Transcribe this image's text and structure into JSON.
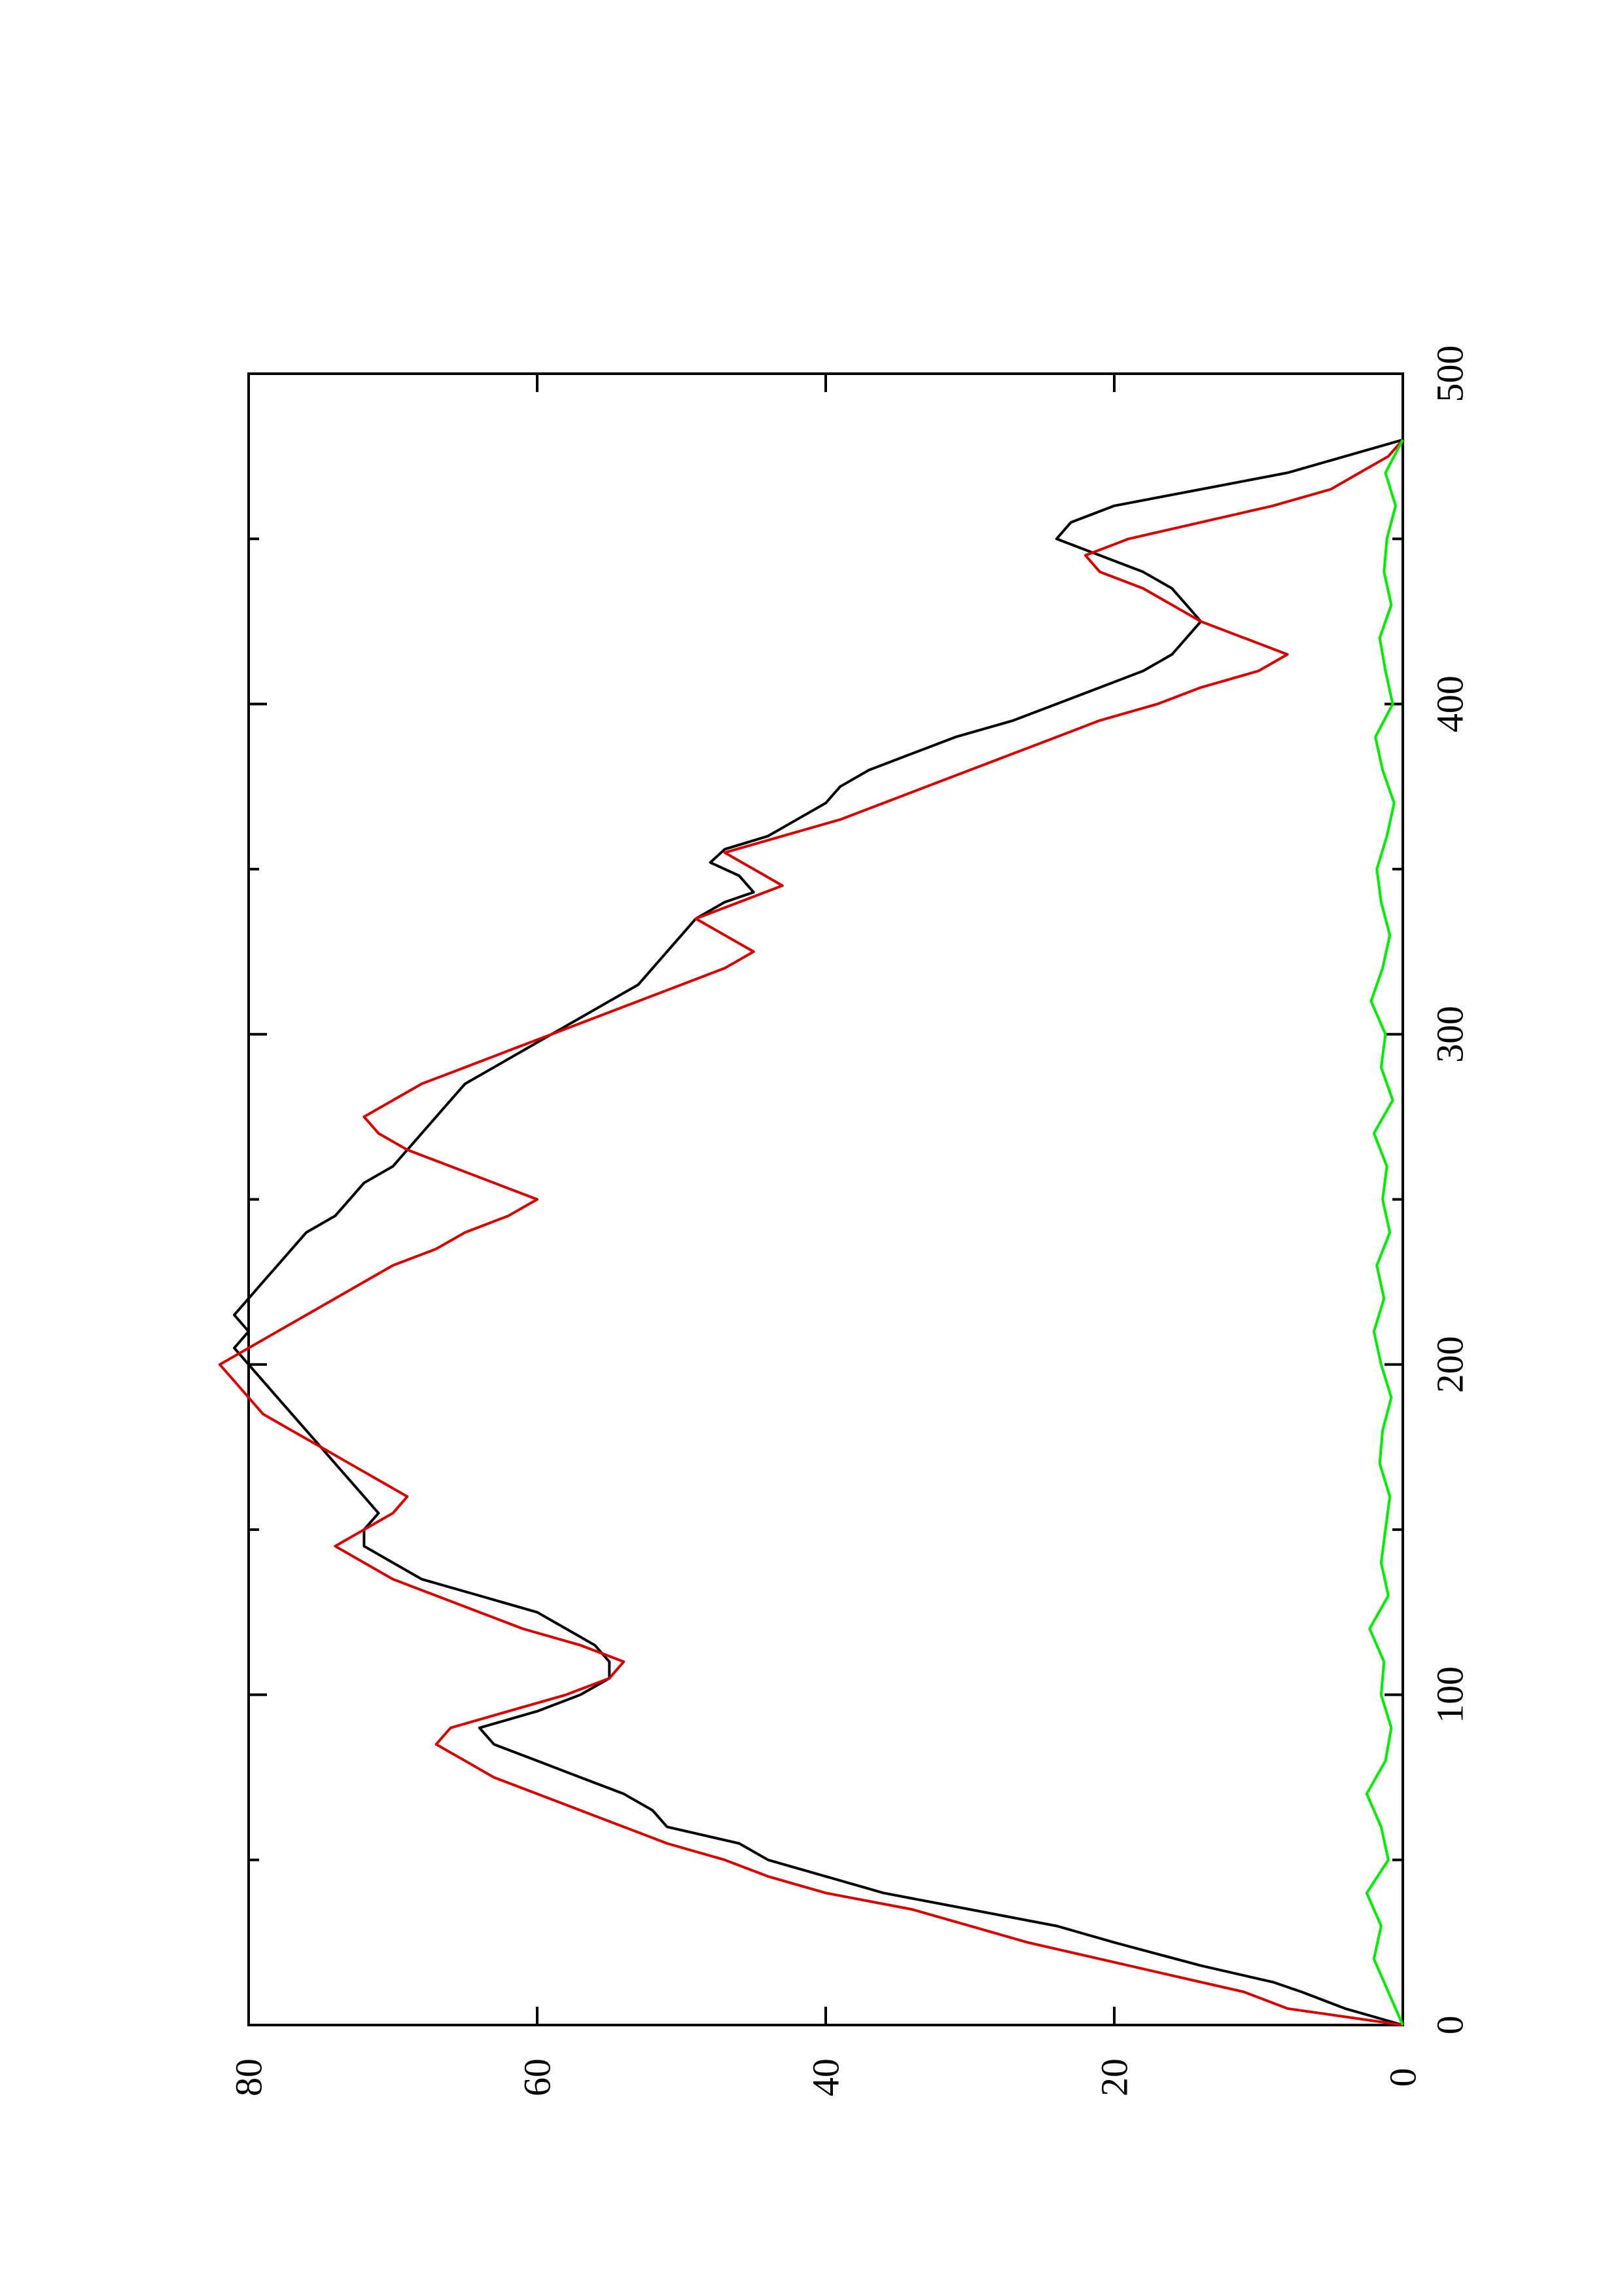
{
  "chart_data": {
    "type": "line",
    "title": "",
    "xlabel": "",
    "ylabel": "",
    "orientation": "rotated-90-ccw",
    "grid": false,
    "legend": "none",
    "xlim": [
      0,
      500
    ],
    "ylim": [
      0,
      80
    ],
    "x_ticks": [
      0,
      100,
      200,
      300,
      400,
      500
    ],
    "x_tick_labels": [
      "0",
      "100",
      "200",
      "300",
      "400",
      "500"
    ],
    "y_ticks": [
      0,
      20,
      40,
      60,
      80
    ],
    "y_tick_labels": [
      "0",
      "20",
      "40",
      "60",
      "80"
    ],
    "series": [
      {
        "color": "#000000",
        "x": [
          0,
          5,
          10,
          13,
          18,
          25,
          30,
          35,
          40,
          45,
          50,
          55,
          60,
          65,
          70,
          75,
          80,
          85,
          90,
          95,
          100,
          105,
          110,
          115,
          120,
          125,
          130,
          135,
          140,
          145,
          150,
          155,
          160,
          165,
          170,
          175,
          180,
          185,
          190,
          195,
          200,
          205,
          210,
          215,
          220,
          225,
          230,
          235,
          240,
          245,
          250,
          255,
          260,
          265,
          270,
          275,
          280,
          285,
          290,
          295,
          300,
          305,
          310,
          315,
          320,
          325,
          330,
          335,
          340,
          343,
          348,
          352,
          356,
          360,
          365,
          370,
          375,
          380,
          385,
          390,
          395,
          400,
          405,
          410,
          415,
          420,
          425,
          430,
          435,
          440,
          445,
          450,
          455,
          460,
          465,
          470,
          475,
          480
        ],
        "y": [
          0,
          4,
          7,
          9,
          14,
          20,
          24,
          30,
          36,
          40,
          44,
          46,
          51,
          52,
          54,
          57,
          60,
          63,
          64,
          60,
          57,
          55,
          55,
          56,
          58,
          60,
          64,
          68,
          70,
          72,
          72,
          71,
          72,
          73,
          74,
          75,
          76,
          77,
          78,
          79,
          80,
          81,
          80,
          81,
          80,
          79,
          78,
          77,
          76,
          74,
          73,
          72,
          70,
          69,
          68,
          67,
          66,
          65,
          63,
          61,
          59,
          57,
          55,
          53,
          52,
          51,
          50,
          49,
          47,
          45,
          46,
          48,
          47,
          44,
          42,
          40,
          39,
          37,
          34,
          31,
          27,
          24,
          21,
          18,
          16,
          15,
          14,
          15,
          16,
          18,
          21,
          24,
          23,
          20,
          14,
          8,
          4,
          0
        ]
      },
      {
        "color": "#dd0000",
        "x": [
          0,
          5,
          10,
          15,
          20,
          25,
          30,
          35,
          40,
          45,
          50,
          55,
          60,
          65,
          70,
          75,
          80,
          85,
          90,
          95,
          100,
          105,
          110,
          115,
          120,
          125,
          130,
          135,
          140,
          145,
          150,
          155,
          160,
          165,
          170,
          175,
          180,
          185,
          190,
          195,
          200,
          205,
          210,
          215,
          220,
          225,
          230,
          235,
          240,
          245,
          250,
          255,
          260,
          265,
          270,
          275,
          280,
          285,
          290,
          295,
          300,
          305,
          310,
          315,
          320,
          325,
          330,
          335,
          340,
          345,
          350,
          355,
          360,
          365,
          370,
          375,
          380,
          385,
          390,
          395,
          400,
          405,
          410,
          415,
          420,
          425,
          430,
          435,
          440,
          445,
          450,
          455,
          460,
          465,
          470,
          475,
          480
        ],
        "y": [
          0,
          8,
          11,
          16,
          21,
          26,
          30,
          34,
          40,
          44,
          47,
          51,
          54,
          57,
          60,
          63,
          65,
          67,
          66,
          62,
          58,
          55,
          54,
          57,
          61,
          64,
          67,
          70,
          72,
          74,
          72,
          70,
          69,
          71,
          73,
          75,
          77,
          79,
          80,
          81,
          82,
          80,
          78,
          76,
          74,
          72,
          70,
          67,
          65,
          62,
          60,
          63,
          66,
          69,
          71,
          72,
          70,
          68,
          65,
          62,
          59,
          56,
          53,
          50,
          47,
          45,
          47,
          49,
          46,
          43,
          45,
          47,
          43,
          39,
          36,
          33,
          30,
          27,
          24,
          21,
          17,
          14,
          10,
          8,
          11,
          14,
          16,
          18,
          21,
          22,
          19,
          14,
          9,
          5,
          3,
          1,
          0
        ]
      },
      {
        "color": "#00ee00",
        "x": [
          0,
          10,
          20,
          30,
          40,
          50,
          60,
          70,
          80,
          90,
          100,
          110,
          120,
          130,
          140,
          150,
          160,
          170,
          180,
          190,
          200,
          210,
          220,
          230,
          240,
          250,
          260,
          270,
          280,
          290,
          300,
          310,
          320,
          330,
          340,
          350,
          360,
          370,
          380,
          390,
          400,
          410,
          420,
          430,
          440,
          450,
          460,
          470,
          480
        ],
        "y": [
          0,
          1,
          2,
          1.5,
          2.5,
          1,
          1.5,
          2.5,
          1.2,
          0.8,
          1.5,
          1.3,
          2.3,
          1,
          1.5,
          1.2,
          0.9,
          1.6,
          1.4,
          0.8,
          1.5,
          2,
          1.3,
          1.8,
          0.9,
          1.4,
          1.1,
          2,
          0.7,
          1.5,
          1.2,
          2.2,
          1.4,
          0.9,
          1.5,
          1.8,
          1.1,
          0.6,
          1.4,
          1.9,
          0.7,
          1.2,
          1.6,
          0.8,
          1.3,
          1.1,
          0.5,
          1.2,
          0
        ]
      }
    ]
  }
}
